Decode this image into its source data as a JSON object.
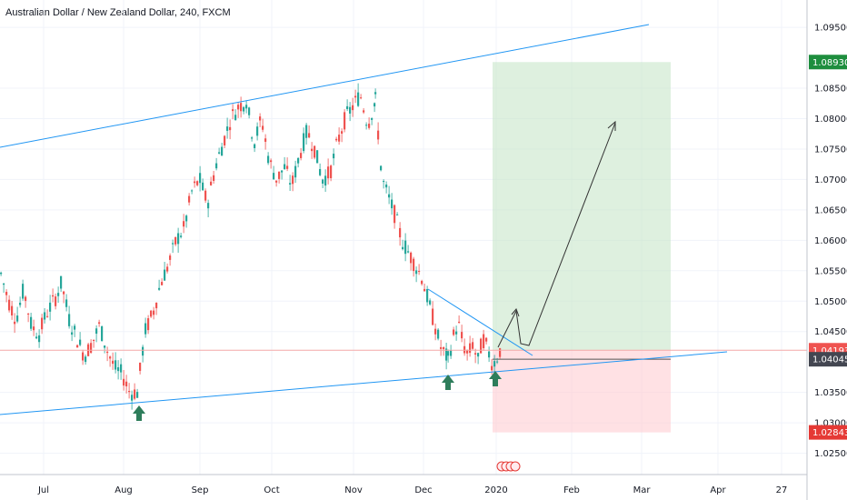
{
  "chart_data": {
    "type": "candlestick",
    "title": "Australian Dollar / New Zealand Dollar, 240, FXCM",
    "x_ticks": [
      "Jul",
      "Aug",
      "Sep",
      "Oct",
      "Nov",
      "Dec",
      "2020",
      "Feb",
      "Mar",
      "Apr",
      "27"
    ],
    "y_ticks": [
      "1.09500",
      "1.08500",
      "1.08000",
      "1.07500",
      "1.07000",
      "1.06500",
      "1.06000",
      "1.05500",
      "1.05000",
      "1.04500",
      "1.03500",
      "1.03000",
      "1.02500"
    ],
    "ylim": [
      1.0215,
      1.0995
    ],
    "price_path": [
      [
        1.0545,
        1.05,
        1.047,
        1.052,
        1.046,
        1.0445,
        1.048,
        1.05,
        1.053,
        1.047,
        1.044,
        1.041,
        1.043,
        1.046,
        1.042,
        1.039,
        1.038,
        1.035,
        1.035
      ],
      [
        1.035,
        1.045,
        1.048,
        1.053,
        1.056,
        1.06,
        1.062,
        1.068,
        1.07,
        1.066,
        1.072,
        1.076,
        1.08,
        1.082,
        1.083
      ],
      [
        1.083,
        1.076,
        1.08,
        1.073,
        1.07,
        1.072,
        1.069,
        1.074,
        1.078,
        1.075,
        1.07,
        1.071,
        1.076,
        1.08,
        1.082,
        1.084,
        1.079,
        1.083
      ],
      [
        1.083,
        1.07,
        1.067,
        1.064,
        1.06,
        1.058,
        1.056,
        1.054,
        1.05,
        1.046,
        1.042,
        1.0405
      ],
      [
        1.0405,
        1.044,
        1.0465,
        1.043,
        1.041,
        1.043,
        1.04,
        1.044,
        1.042,
        1.0395,
        1.041,
        1.043
      ]
    ],
    "horizontal_line": 1.04193,
    "price_labels": [
      {
        "value": 1.0893,
        "text": "1.08930",
        "color": "#1e8e3e"
      },
      {
        "value": 1.04193,
        "text": "1.04193",
        "color": "#ef5350"
      },
      {
        "value": 1.04045,
        "text": "1.04045",
        "color": "#434651"
      },
      {
        "value": 1.02843,
        "text": "1.02843",
        "color": "#e53935"
      }
    ],
    "colors": {
      "up": "#26a69a",
      "down": "#ef5350",
      "trendline": "#2196f3",
      "profit_zone": "#c8e6c9",
      "loss_zone": "#ffcdd2",
      "arrow_marker": "#2e7d5b"
    }
  }
}
